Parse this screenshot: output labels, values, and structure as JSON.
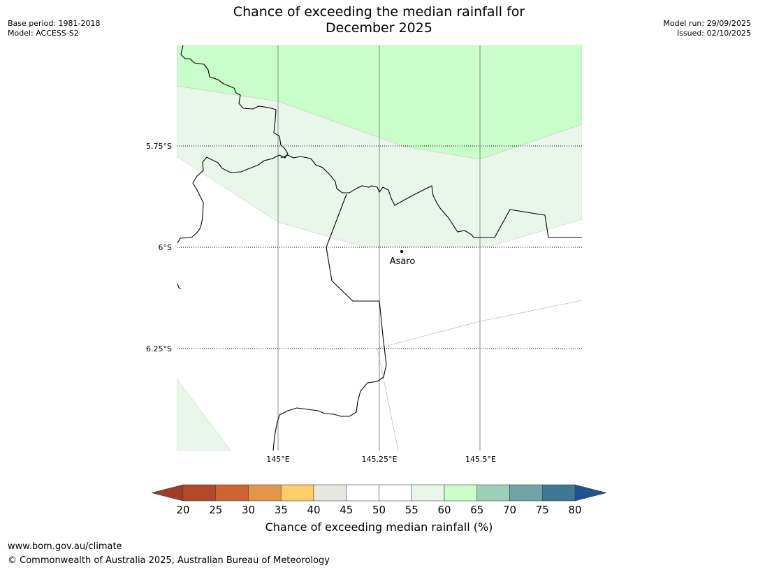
{
  "title_line1": "Chance of exceeding the median rainfall for",
  "title_line2": "December 2025",
  "meta": {
    "base_period": "Base period: 1981-2018",
    "model": "Model: ACCESS-S2",
    "model_run": "Model run: 29/09/2025",
    "issued": "Issued: 02/10/2025"
  },
  "map": {
    "lat_labels": [
      "5.75°S",
      "6°S",
      "6.25°S"
    ],
    "lon_labels": [
      "145°E",
      "145.25°E",
      "145.5°E"
    ],
    "place": "Asaro",
    "colors": {
      "band_60_65": "#c9fdc9",
      "band_55_60": "#eaf6ea",
      "gridline": "#888888",
      "coast": "#000000"
    }
  },
  "colorbar": {
    "label": "Chance of exceeding median rainfall (%)",
    "ticks": [
      "20",
      "25",
      "30",
      "35",
      "40",
      "45",
      "50",
      "55",
      "60",
      "65",
      "70",
      "75",
      "80"
    ],
    "under_color": "#a03b28",
    "over_color": "#1f5390",
    "colors": [
      "#b34a27",
      "#cd6432",
      "#e3964a",
      "#fdcd69",
      "#e8e6e1",
      "#ffffff",
      "#ffffff",
      "#eaf6ea",
      "#c9fdc9",
      "#9ed0b9",
      "#70a4a6",
      "#3f7796"
    ]
  },
  "footer": {
    "url": "www.bom.gov.au/climate",
    "copyright": "© Commonwealth of Australia 2025, Australian Bureau of Meteorology"
  }
}
